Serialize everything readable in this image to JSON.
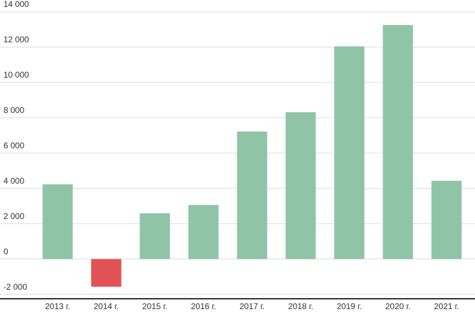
{
  "chart_data": {
    "type": "bar",
    "categories": [
      "2013 г.",
      "2014 г.",
      "2015 г.",
      "2016 г.",
      "2017 г.",
      "2018 г.",
      "2019 г.",
      "2020 г.",
      "2021 г."
    ],
    "values": [
      4230,
      -1570,
      2590,
      3060,
      7220,
      8310,
      12040,
      13250,
      4430
    ],
    "colors": [
      "#8fc4a7",
      "#e05254",
      "#8fc4a7",
      "#8fc4a7",
      "#8fc4a7",
      "#8fc4a7",
      "#8fc4a7",
      "#8fc4a7",
      "#8fc4a7"
    ],
    "ylim": [
      -2250,
      14000
    ],
    "yticks": [
      {
        "value": -2000,
        "label": "-2 000"
      },
      0,
      {
        "value": 2000,
        "label": "2 000"
      },
      {
        "value": 4000,
        "label": "4 000"
      },
      {
        "value": 6000,
        "label": "6 000"
      },
      {
        "value": 8000,
        "label": "8 000"
      },
      {
        "value": 10000,
        "label": "10 000"
      },
      {
        "value": 12000,
        "label": "12 000"
      },
      {
        "value": 14000,
        "label": "14 000"
      }
    ],
    "grid": true
  }
}
